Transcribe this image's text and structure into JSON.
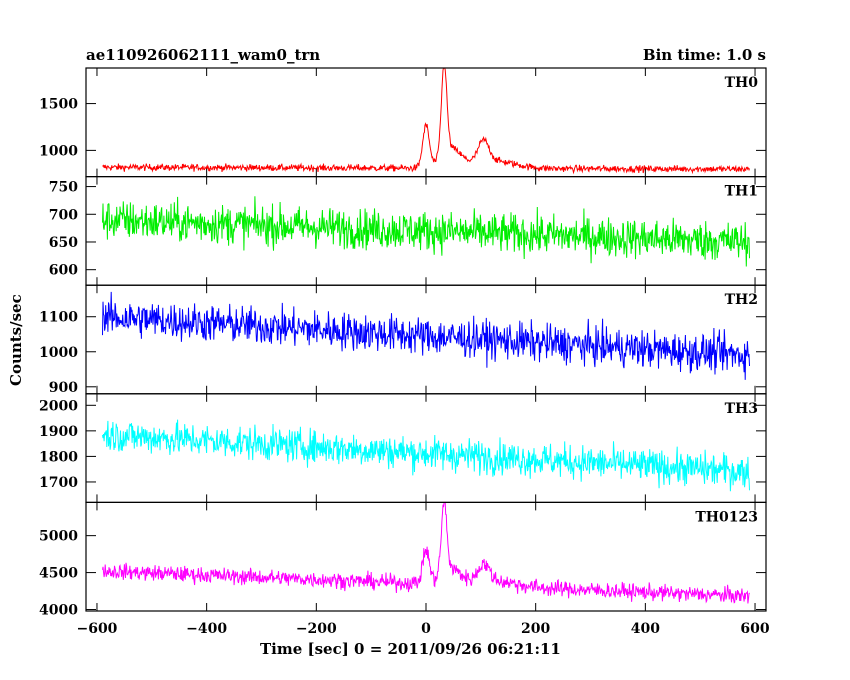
{
  "header": {
    "title": "ae110926062111_wam0_trn",
    "bin_time": "Bin time: 1.0 s"
  },
  "axes": {
    "ylabel": "Counts/sec",
    "xlabel": "Time [sec] 0 = 2011/09/26 06:21:11",
    "xlim": [
      -620,
      620
    ],
    "xticks": [
      -600,
      -400,
      -200,
      0,
      200,
      400,
      600
    ]
  },
  "chart_data": {
    "type": "line",
    "x_range": [
      -590,
      590
    ],
    "bin_time_s": 1.0,
    "series": [
      {
        "name": "TH0",
        "color": "#ff0000",
        "ylim": [
          720,
          1880
        ],
        "yticks": [
          1000,
          1500
        ],
        "baseline_start": 820,
        "baseline_end": 800,
        "noise": 30,
        "peaks": [
          {
            "t": 0,
            "amp": 450,
            "w": 6
          },
          {
            "t": 33,
            "amp": 950,
            "w": 5
          },
          {
            "t": 45,
            "amp": 200,
            "w": 18
          },
          {
            "t": 105,
            "amp": 230,
            "w": 10
          },
          {
            "t": 120,
            "amp": 80,
            "w": 40
          }
        ]
      },
      {
        "name": "TH1",
        "color": "#00ee00",
        "ylim": [
          572,
          768
        ],
        "yticks": [
          600,
          650,
          700,
          750
        ],
        "baseline_start": 690,
        "baseline_end": 650,
        "noise": 30,
        "peaks": []
      },
      {
        "name": "TH2",
        "color": "#0000ff",
        "ylim": [
          880,
          1190
        ],
        "yticks": [
          900,
          1000,
          1100
        ],
        "baseline_start": 1100,
        "baseline_end": 990,
        "noise": 45,
        "peaks": []
      },
      {
        "name": "TH3",
        "color": "#00ffff",
        "ylim": [
          1620,
          2045
        ],
        "yticks": [
          1700,
          1800,
          1900,
          2000
        ],
        "baseline_start": 1885,
        "baseline_end": 1740,
        "noise": 55,
        "peaks": []
      },
      {
        "name": "TH0123",
        "color": "#ff00ff",
        "ylim": [
          3980,
          5450
        ],
        "yticks": [
          4000,
          4500,
          5000
        ],
        "baseline_start": 4520,
        "baseline_end": 4180,
        "noise": 90,
        "peaks": [
          {
            "t": 0,
            "amp": 450,
            "w": 6
          },
          {
            "t": 33,
            "amp": 950,
            "w": 5
          },
          {
            "t": 45,
            "amp": 200,
            "w": 18
          },
          {
            "t": 105,
            "amp": 230,
            "w": 10
          },
          {
            "t": 120,
            "amp": 80,
            "w": 40
          }
        ]
      }
    ]
  }
}
